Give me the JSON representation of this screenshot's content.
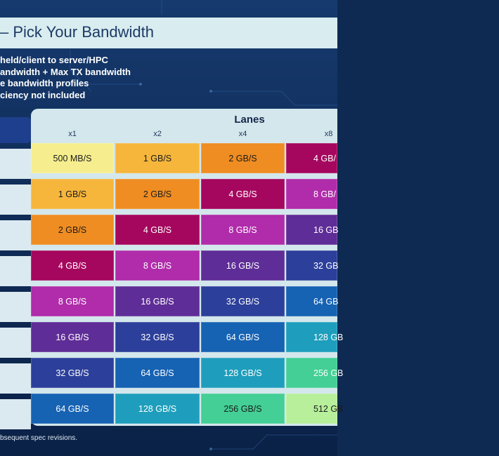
{
  "title": "– Pick Your Bandwidth",
  "bullets": [
    "held/client to server/HPC",
    "andwidth + Max TX bandwidth",
    "e bandwidth profiles",
    "ciency not included"
  ],
  "lanes_label": "Lanes",
  "columns": [
    "x1",
    "x2",
    "x4",
    "x8"
  ],
  "rows": [
    [
      "500 MB/S",
      "1 GB/S",
      "2 GB/S",
      "4 GB/"
    ],
    [
      "1 GB/S",
      "2 GB/S",
      "4 GB/S",
      "8 GB/"
    ],
    [
      "2 GB/S",
      "4 GB/S",
      "8 GB/S",
      "16 GB"
    ],
    [
      "4 GB/S",
      "8 GB/S",
      "16 GB/S",
      "32 GB"
    ],
    [
      "8 GB/S",
      "16 GB/S",
      "32 GB/S",
      "64 GB"
    ],
    [
      "16 GB/S",
      "32 GB/S",
      "64 GB/S",
      "128 GB"
    ],
    [
      "32 GB/S",
      "64 GB/S",
      "128 GB/S",
      "256 GB"
    ],
    [
      "64 GB/S",
      "128 GB/S",
      "256 GB/S",
      "512 GB"
    ]
  ],
  "cell_colors": [
    [
      "#f6ee8e",
      "#f6b63c",
      "#ef8d22",
      "#a5075e"
    ],
    [
      "#f6b63c",
      "#ef8d22",
      "#a5075e",
      "#b02caa"
    ],
    [
      "#ef8d22",
      "#a5075e",
      "#b02caa",
      "#5f2d97"
    ],
    [
      "#a5075e",
      "#b02caa",
      "#5f2d97",
      "#2c3f9a"
    ],
    [
      "#b02caa",
      "#5f2d97",
      "#2c3f9a",
      "#1662b3"
    ],
    [
      "#5f2d97",
      "#2c3f9a",
      "#1662b3",
      "#1e9ebc"
    ],
    [
      "#2c3f9a",
      "#1662b3",
      "#1e9ebc",
      "#43cf95"
    ],
    [
      "#1662b3",
      "#1e9ebc",
      "#43cf95",
      "#b7ef9b"
    ]
  ],
  "text_colors": [
    [
      "#1b1b1b",
      "#1b1b1b",
      "#1b1b1b",
      "#ffffff"
    ],
    [
      "#1b1b1b",
      "#1b1b1b",
      "#ffffff",
      "#ffffff"
    ],
    [
      "#1b1b1b",
      "#ffffff",
      "#ffffff",
      "#ffffff"
    ],
    [
      "#ffffff",
      "#ffffff",
      "#ffffff",
      "#ffffff"
    ],
    [
      "#ffffff",
      "#ffffff",
      "#ffffff",
      "#ffffff"
    ],
    [
      "#ffffff",
      "#ffffff",
      "#ffffff",
      "#ffffff"
    ],
    [
      "#ffffff",
      "#ffffff",
      "#ffffff",
      "#ffffff"
    ],
    [
      "#ffffff",
      "#ffffff",
      "#1b1b1b",
      "#1b1b1b"
    ]
  ],
  "footnote": "bsequent spec revisions."
}
